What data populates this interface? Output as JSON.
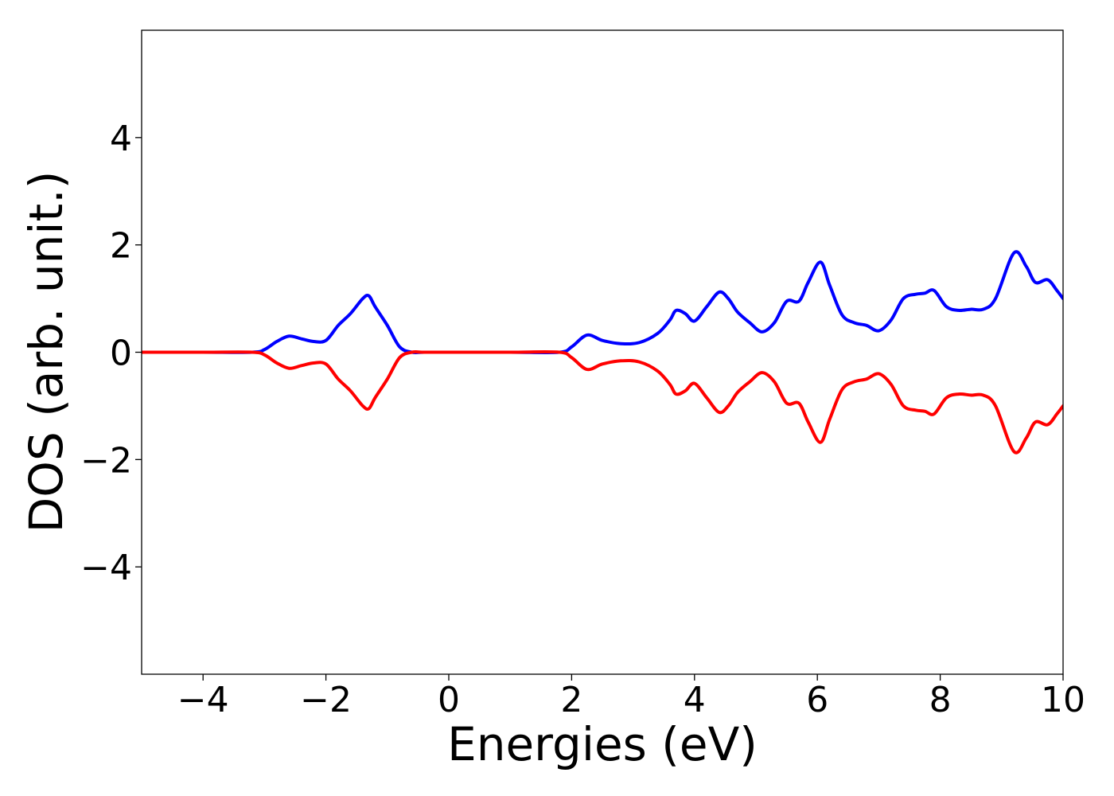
{
  "chart_data": {
    "type": "line",
    "title": "",
    "xlabel": "Energies (eV)",
    "ylabel": "DOS (arb. unit.)",
    "xlim": [
      -5,
      10
    ],
    "ylim": [
      -6,
      6
    ],
    "grid": false,
    "legend": "none",
    "x_ticks": [
      -4,
      -2,
      0,
      2,
      4,
      6,
      8,
      10
    ],
    "x_tick_labels": [
      "−4",
      "−2",
      "0",
      "2",
      "4",
      "6",
      "8",
      "10"
    ],
    "y_ticks": [
      -4,
      -2,
      0,
      2,
      4
    ],
    "y_tick_labels": [
      "−4",
      "−2",
      "0",
      "2",
      "4"
    ],
    "x": [
      -5.0,
      -4.0,
      -3.2,
      -3.0,
      -2.8,
      -2.6,
      -2.4,
      -2.2,
      -2.0,
      -1.8,
      -1.6,
      -1.4,
      -1.3,
      -1.2,
      -1.0,
      -0.8,
      -0.6,
      -0.4,
      0.0,
      1.0,
      1.8,
      2.0,
      2.25,
      2.5,
      2.8,
      3.1,
      3.4,
      3.6,
      3.7,
      3.85,
      4.0,
      4.2,
      4.4,
      4.55,
      4.7,
      4.9,
      5.1,
      5.3,
      5.5,
      5.7,
      5.85,
      6.05,
      6.2,
      6.4,
      6.6,
      6.8,
      7.0,
      7.2,
      7.4,
      7.6,
      7.75,
      7.9,
      8.1,
      8.3,
      8.5,
      8.7,
      8.9,
      9.2,
      9.4,
      9.55,
      9.75,
      9.9,
      10.0
    ],
    "series": [
      {
        "color": "#0000ff",
        "values": [
          0.0,
          0.0,
          0.0,
          0.05,
          0.2,
          0.3,
          0.25,
          0.2,
          0.22,
          0.5,
          0.72,
          1.0,
          1.05,
          0.85,
          0.5,
          0.1,
          0.0,
          0.0,
          0.0,
          0.0,
          0.0,
          0.1,
          0.32,
          0.22,
          0.16,
          0.18,
          0.35,
          0.6,
          0.78,
          0.72,
          0.58,
          0.85,
          1.12,
          1.0,
          0.75,
          0.55,
          0.38,
          0.55,
          0.95,
          0.95,
          1.3,
          1.68,
          1.25,
          0.7,
          0.55,
          0.5,
          0.4,
          0.6,
          1.0,
          1.08,
          1.1,
          1.15,
          0.85,
          0.78,
          0.8,
          0.8,
          1.0,
          1.85,
          1.6,
          1.3,
          1.35,
          1.15,
          1.0
        ]
      },
      {
        "color": "#ff0000",
        "values": [
          0.0,
          0.0,
          0.0,
          -0.05,
          -0.2,
          -0.3,
          -0.25,
          -0.2,
          -0.22,
          -0.5,
          -0.72,
          -1.0,
          -1.05,
          -0.85,
          -0.5,
          -0.1,
          0.0,
          0.0,
          0.0,
          0.0,
          0.0,
          -0.1,
          -0.32,
          -0.22,
          -0.16,
          -0.18,
          -0.35,
          -0.6,
          -0.78,
          -0.72,
          -0.58,
          -0.85,
          -1.12,
          -1.0,
          -0.75,
          -0.55,
          -0.38,
          -0.55,
          -0.95,
          -0.95,
          -1.3,
          -1.68,
          -1.25,
          -0.7,
          -0.55,
          -0.5,
          -0.4,
          -0.6,
          -1.0,
          -1.08,
          -1.1,
          -1.15,
          -0.85,
          -0.78,
          -0.8,
          -0.8,
          -1.0,
          -1.85,
          -1.6,
          -1.3,
          -1.35,
          -1.15,
          -1.0
        ]
      }
    ]
  }
}
